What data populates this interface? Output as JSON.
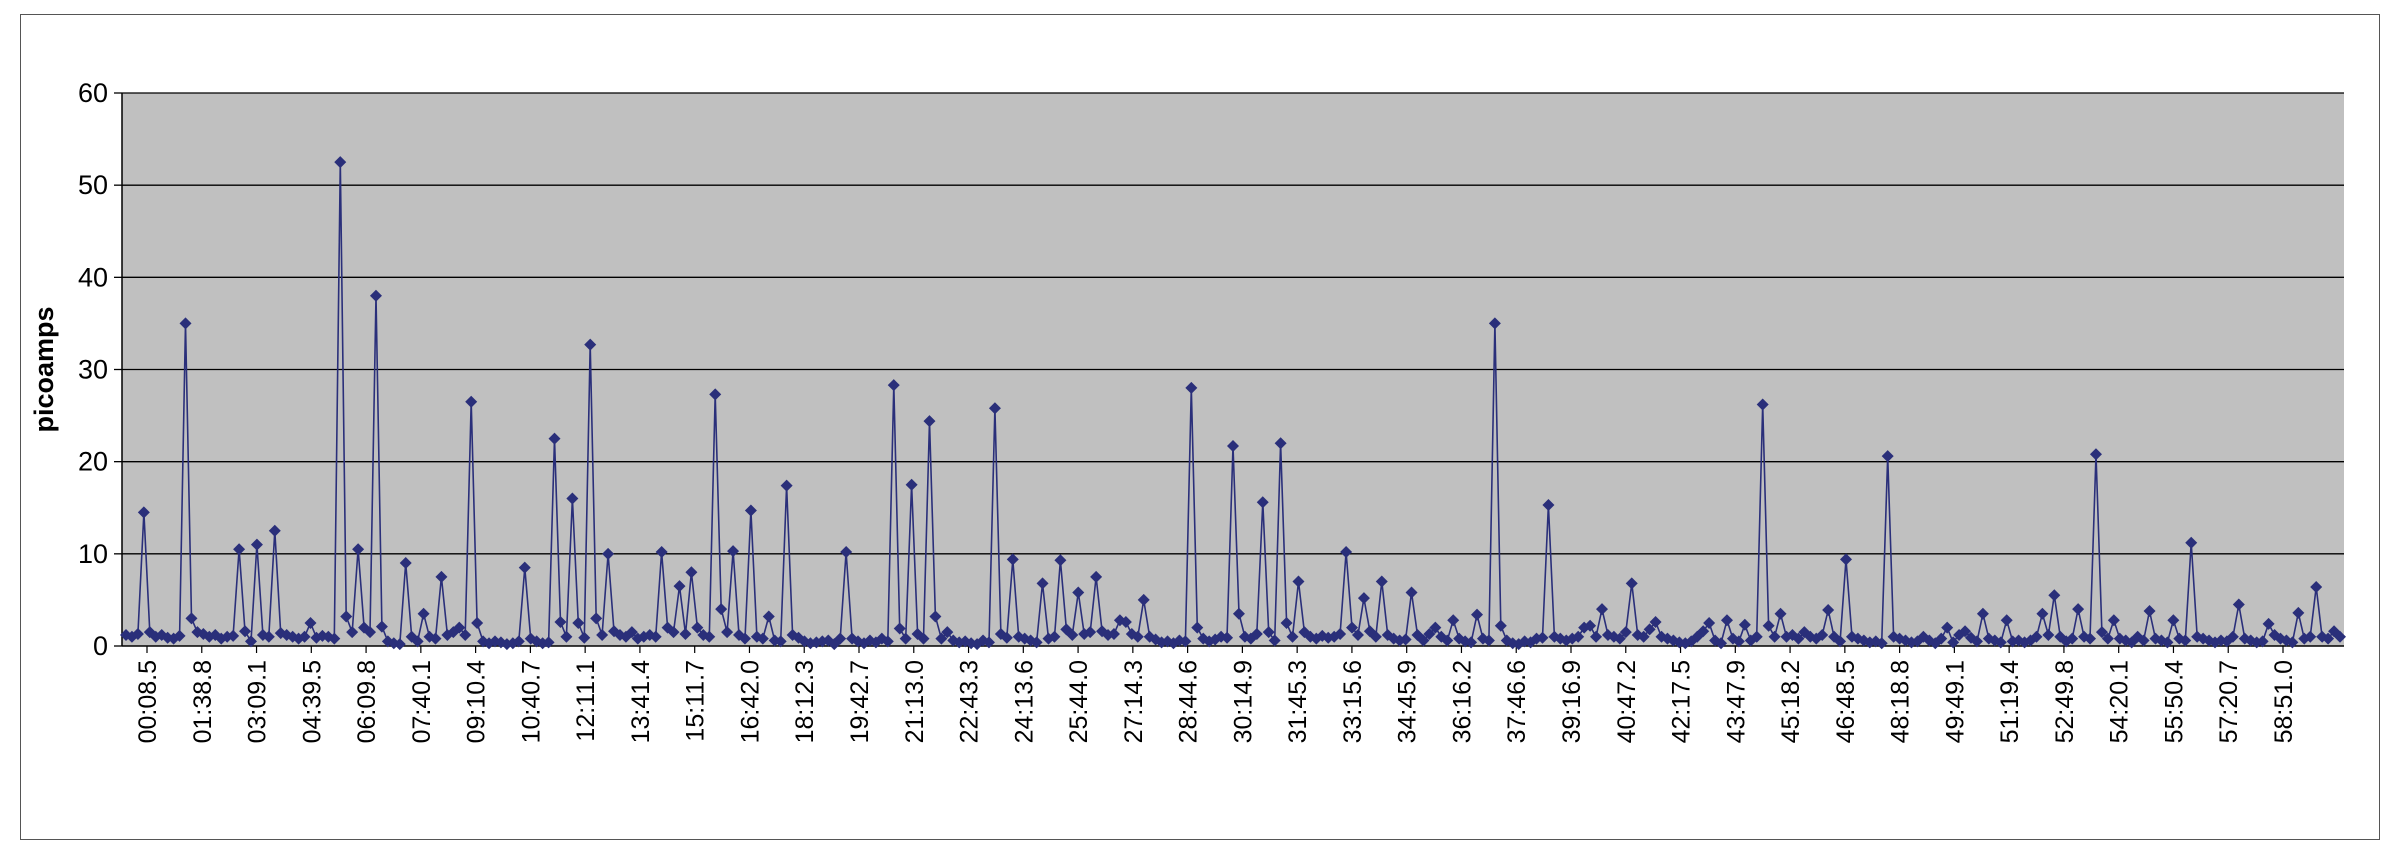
{
  "chart_data": {
    "type": "line",
    "title": "",
    "xlabel": "",
    "ylabel": "picoamps",
    "ylim": [
      0,
      60
    ],
    "yticks": [
      0,
      10,
      20,
      30,
      40,
      50,
      60
    ],
    "grid": true,
    "legend": "none",
    "x_tick_labels": [
      "00:08.5",
      "01:38.8",
      "03:09.1",
      "04:39.5",
      "06:09.8",
      "07:40.1",
      "09:10.4",
      "10:40.7",
      "12:11.1",
      "13:41.4",
      "15:11.7",
      "16:42.0",
      "18:12.3",
      "19:42.7",
      "21:13.0",
      "22:43.3",
      "24:13.6",
      "25:44.0",
      "27:14.3",
      "28:44.6",
      "30:14.9",
      "31:45.3",
      "33:15.6",
      "34:45.9",
      "36:16.2",
      "37:46.6",
      "39:16.9",
      "40:47.2",
      "42:17.5",
      "43:47.9",
      "45:18.2",
      "46:48.5",
      "48:18.8",
      "49:49.1",
      "51:19.4",
      "52:49.8",
      "54:20.1",
      "55:50.4",
      "57:20.7",
      "58:51.0"
    ],
    "colors": {
      "line": "#2a2f7a",
      "plot_bg": "#c0c0c0",
      "grid": "#000000"
    },
    "series": [
      {
        "values": [
          1.2,
          1.0,
          1.3,
          14.5,
          1.5,
          1.0,
          1.2,
          0.9,
          0.8,
          1.1,
          35.0,
          3.0,
          1.5,
          1.3,
          1.0,
          1.2,
          0.8,
          1.0,
          1.1,
          10.5,
          1.6,
          0.5,
          11.0,
          1.2,
          1.0,
          12.5,
          1.4,
          1.2,
          1.0,
          0.8,
          1.0,
          2.5,
          0.9,
          1.1,
          1.0,
          0.8,
          52.5,
          3.2,
          1.5,
          10.5,
          2.0,
          1.5,
          38.0,
          2.1,
          0.5,
          0.3,
          0.2,
          9.0,
          1.0,
          0.5,
          3.5,
          1.0,
          0.8,
          7.5,
          1.2,
          1.5,
          2.0,
          1.2,
          26.5,
          2.5,
          0.5,
          0.3,
          0.5,
          0.4,
          0.2,
          0.3,
          0.5,
          8.5,
          0.8,
          0.5,
          0.3,
          0.4,
          22.5,
          2.6,
          1.0,
          16.0,
          2.5,
          0.9,
          32.7,
          3.0,
          1.2,
          10.0,
          1.6,
          1.2,
          1.0,
          1.5,
          0.8,
          1.0,
          1.2,
          1.0,
          10.2,
          2.0,
          1.5,
          6.5,
          1.3,
          8.0,
          2.0,
          1.2,
          1.0,
          27.3,
          4.0,
          1.5,
          10.3,
          1.2,
          0.8,
          14.7,
          1.0,
          0.8,
          3.2,
          0.6,
          0.5,
          17.4,
          1.2,
          0.9,
          0.5,
          0.3,
          0.4,
          0.5,
          0.6,
          0.2,
          0.8,
          10.2,
          0.8,
          0.5,
          0.3,
          0.6,
          0.4,
          0.8,
          0.5,
          28.3,
          1.9,
          0.8,
          17.5,
          1.3,
          0.8,
          24.4,
          3.2,
          0.8,
          1.5,
          0.6,
          0.4,
          0.5,
          0.3,
          0.2,
          0.6,
          0.4,
          25.8,
          1.3,
          0.9,
          9.4,
          1.0,
          0.8,
          0.6,
          0.4,
          6.8,
          0.8,
          1.0,
          9.3,
          1.8,
          1.2,
          5.8,
          1.3,
          1.5,
          7.5,
          1.6,
          1.2,
          1.3,
          2.8,
          2.6,
          1.3,
          1.0,
          5.0,
          1.0,
          0.7,
          0.4,
          0.5,
          0.3,
          0.6,
          0.5,
          28.0,
          2.0,
          0.8,
          0.5,
          0.7,
          1.0,
          0.9,
          21.7,
          3.5,
          1.0,
          0.8,
          1.3,
          15.6,
          1.5,
          0.6,
          22.0,
          2.5,
          1.0,
          7.0,
          1.5,
          1.0,
          0.8,
          1.1,
          0.9,
          1.0,
          1.3,
          10.2,
          2.0,
          1.2,
          5.2,
          1.6,
          1.0,
          7.0,
          1.2,
          0.8,
          0.6,
          0.7,
          5.8,
          1.2,
          0.6,
          1.3,
          2.0,
          1.0,
          0.6,
          2.8,
          0.8,
          0.5,
          0.4,
          3.4,
          0.8,
          0.6,
          35.0,
          2.2,
          0.6,
          0.3,
          0.2,
          0.5,
          0.4,
          0.8,
          0.9,
          15.3,
          1.0,
          0.8,
          0.6,
          0.8,
          1.0,
          2.0,
          2.2,
          1.0,
          4.0,
          1.2,
          1.0,
          0.8,
          1.5,
          6.8,
          1.2,
          1.0,
          1.8,
          2.6,
          1.0,
          0.8,
          0.6,
          0.4,
          0.3,
          0.5,
          1.0,
          1.6,
          2.5,
          0.6,
          0.3,
          2.8,
          0.8,
          0.5,
          2.3,
          0.6,
          1.0,
          26.2,
          2.2,
          1.0,
          3.5,
          1.0,
          1.2,
          0.8,
          1.5,
          1.0,
          0.8,
          1.2,
          3.9,
          1.0,
          0.5,
          9.4,
          1.0,
          0.8,
          0.6,
          0.4,
          0.5,
          0.3,
          20.6,
          1.0,
          0.8,
          0.6,
          0.4,
          0.5,
          1.0,
          0.6,
          0.3,
          0.8,
          2.0,
          0.4,
          1.2,
          1.6,
          0.9,
          0.5,
          3.5,
          0.8,
          0.6,
          0.4,
          2.8,
          0.5,
          0.6,
          0.4,
          0.6,
          1.0,
          3.5,
          1.2,
          5.5,
          1.0,
          0.5,
          0.8,
          4.0,
          1.0,
          0.8,
          20.8,
          1.5,
          0.8,
          2.8,
          0.8,
          0.6,
          0.4,
          1.0,
          0.6,
          3.8,
          0.8,
          0.6,
          0.4,
          2.8,
          0.8,
          0.6,
          11.2,
          1.0,
          0.8,
          0.6,
          0.4,
          0.6,
          0.5,
          1.0,
          4.5,
          0.8,
          0.6,
          0.4,
          0.5,
          2.4,
          1.2,
          0.8,
          0.6,
          0.4,
          3.6,
          0.8,
          1.0,
          6.4,
          1.0,
          0.8,
          1.6,
          1.0
        ]
      }
    ]
  }
}
